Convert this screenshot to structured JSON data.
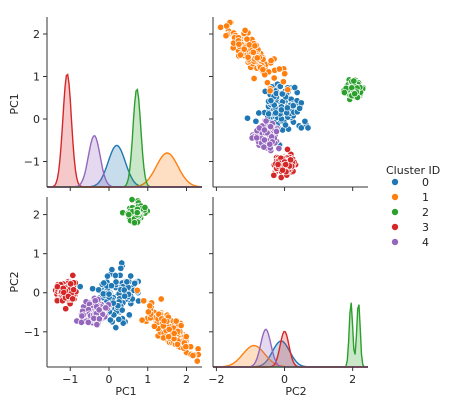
{
  "chart_data": {
    "type": "scatter",
    "kind": "pairplot",
    "variables": [
      "PC1",
      "PC2"
    ],
    "legend": {
      "title": "Cluster ID",
      "placement": "right",
      "entries": [
        "0",
        "1",
        "2",
        "3",
        "4"
      ]
    },
    "colors": {
      "0": "#1f77b4",
      "1": "#ff7f0e",
      "2": "#2ca02c",
      "3": "#d62728",
      "4": "#9467bd"
    },
    "axes": {
      "PC1": {
        "range": [
          -1.6,
          2.4
        ],
        "ticks": [
          -1,
          0,
          1,
          2
        ],
        "tick_labels": [
          "−1",
          "0",
          "1",
          "2"
        ]
      },
      "PC2": {
        "range": [
          -2.1,
          2.45
        ],
        "ticks": [
          -2,
          0,
          2
        ],
        "tick_labels": [
          "−2",
          "0",
          "2"
        ]
      }
    },
    "row_ticks": {
      "PC1": {
        "ticks": [
          -1,
          0,
          1,
          2
        ],
        "tick_labels": [
          "−1",
          "0",
          "1",
          "2"
        ]
      },
      "PC2": {
        "ticks": [
          -1,
          0,
          1,
          2
        ],
        "tick_labels": [
          "−1",
          "0",
          "1",
          "2"
        ]
      }
    },
    "clusters": [
      {
        "id": "0",
        "pc1_mean": 0.2,
        "pc1_sd": 0.22,
        "pc2_mean": -0.1,
        "pc2_sd": 0.25,
        "pc1_peak": 0.55,
        "pc2_peak": 0.4
      },
      {
        "id": "1",
        "pc1_mean": 1.5,
        "pc1_sd": 0.28,
        "pc2_mean": -0.9,
        "pc2_sd": 0.32,
        "pc1_peak": 0.45,
        "pc2_peak": 0.33
      },
      {
        "id": "2",
        "pc1_mean": 0.72,
        "pc1_sd": 0.1,
        "pc2_mean": 2.05,
        "pc2_sd": 0.1,
        "pc1_peak": 1.3,
        "pc2_peak": 1.0
      },
      {
        "id": "3",
        "pc1_mean": -1.08,
        "pc1_sd": 0.11,
        "pc2_mean": 0.0,
        "pc2_sd": 0.13,
        "pc1_peak": 1.5,
        "pc2_peak": 0.55
      },
      {
        "id": "4",
        "pc1_mean": -0.38,
        "pc1_sd": 0.15,
        "pc2_mean": -0.55,
        "pc2_sd": 0.15,
        "pc1_peak": 0.68,
        "pc2_peak": 0.58
      }
    ]
  }
}
